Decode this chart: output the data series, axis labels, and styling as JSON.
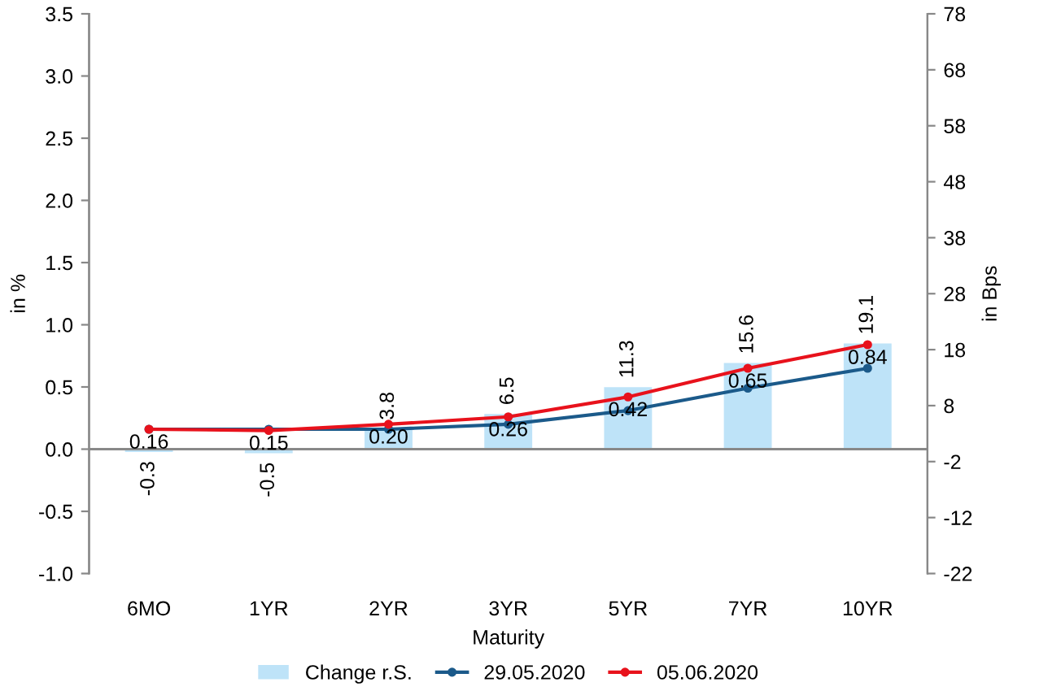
{
  "chart_data": {
    "type": "bar",
    "xlabel": "Maturity",
    "ylabel": "in %",
    "y2label": "in Bps",
    "categories": [
      "6MO",
      "1YR",
      "2YR",
      "3YR",
      "5YR",
      "7YR",
      "10YR"
    ],
    "series": [
      {
        "name": "Change r.S.",
        "axis": "y2",
        "color": "#bee3f8",
        "values": [
          -0.3,
          -0.5,
          3.8,
          6.5,
          11.3,
          15.6,
          19.1
        ],
        "value_labels": [
          "-0.3",
          "-0.5",
          "3.8",
          "6.5",
          "11.3",
          "15.6",
          "19.1"
        ]
      },
      {
        "name": "29.05.2020",
        "type": "line",
        "color": "#1b5a8a",
        "values": [
          0.16,
          0.16,
          0.16,
          0.2,
          0.31,
          0.49,
          0.65
        ]
      },
      {
        "name": "05.06.2020",
        "type": "line",
        "color": "#e8121c",
        "values": [
          0.16,
          0.15,
          0.2,
          0.26,
          0.42,
          0.65,
          0.84
        ],
        "value_labels": [
          "0.16",
          "0.15",
          "0.20",
          "0.26",
          "0.42",
          "0.65",
          "0.84"
        ]
      }
    ],
    "ylim": [
      -1.0,
      3.5
    ],
    "yticks": [
      {
        "value": -1.0,
        "label": "-1.0"
      },
      {
        "value": -0.5,
        "label": "-0.5"
      },
      {
        "value": 0.0,
        "label": "0.0"
      },
      {
        "value": 0.5,
        "label": "0.5"
      },
      {
        "value": 1.0,
        "label": "1.0"
      },
      {
        "value": 1.5,
        "label": "1.5"
      },
      {
        "value": 2.0,
        "label": "2.0"
      },
      {
        "value": 2.5,
        "label": "2.5"
      },
      {
        "value": 3.0,
        "label": "3.0"
      },
      {
        "value": 3.5,
        "label": "3.5"
      }
    ],
    "y2lim": [
      -22,
      78
    ],
    "y2ticks": [
      -22,
      -12,
      -2,
      8,
      18,
      28,
      38,
      48,
      58,
      68,
      78
    ],
    "ref_lines": [
      {
        "axis": "y",
        "value": 0,
        "color": "#888888"
      }
    ],
    "marker": "circle",
    "line_style": "solid",
    "legend": "bottom",
    "grid": false
  }
}
